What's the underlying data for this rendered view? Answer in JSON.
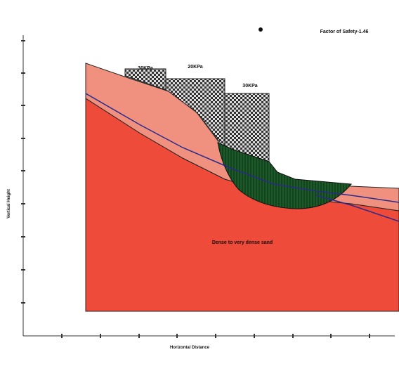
{
  "header": {
    "factor_of_safety": "Factor of Safety-1.46"
  },
  "loads": [
    "30KPa",
    "20KPa",
    "30KPa"
  ],
  "layers": {
    "main": "Dense to very dense sand"
  },
  "axes": {
    "y_label": "Vertical Height",
    "x_label": "Horizontal Distance"
  }
}
